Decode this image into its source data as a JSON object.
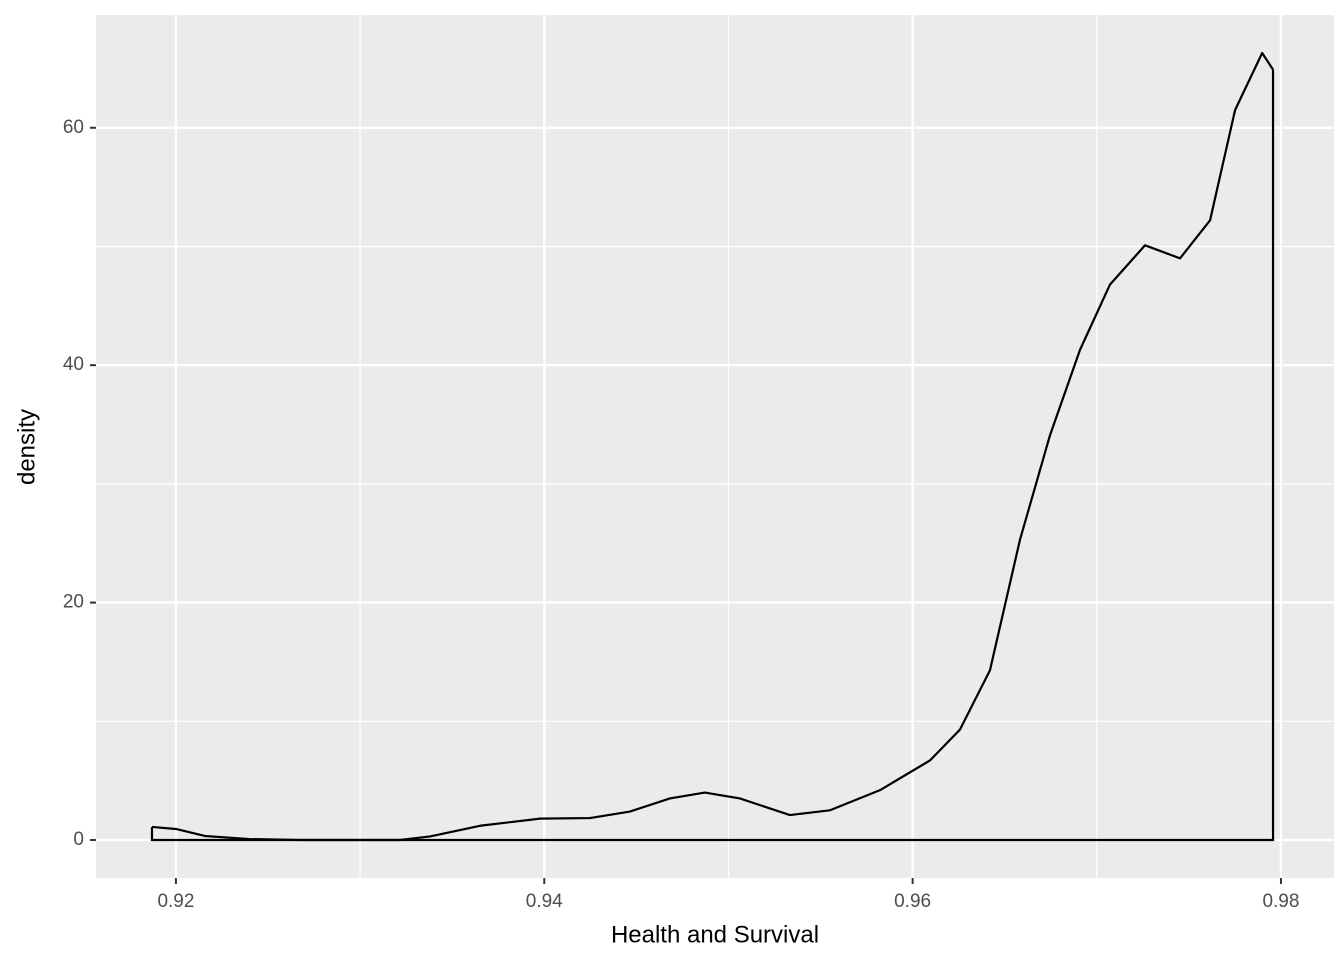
{
  "chart_data": {
    "type": "density",
    "xlabel": "Health and Survival",
    "ylabel": "density",
    "x": [
      0.9187,
      0.92,
      0.92157,
      0.924,
      0.92673,
      0.93216,
      0.9338,
      0.93651,
      0.93977,
      0.94248,
      0.94465,
      0.94682,
      0.94872,
      0.95062,
      0.95334,
      0.9555,
      0.95823,
      0.96094,
      0.96257,
      0.9642,
      0.96583,
      0.96746,
      0.96909,
      0.97072,
      0.97262,
      0.97452,
      0.97615,
      0.97751,
      0.97898,
      0.97957
    ],
    "values": [
      1.1,
      0.93,
      0.34,
      0.08,
      0,
      0,
      0.3,
      1.2,
      1.8,
      1.85,
      2.4,
      3.5,
      4.0,
      3.5,
      2.1,
      2.5,
      4.2,
      6.7,
      9.3,
      14.3,
      25.3,
      34.1,
      41.3,
      46.8,
      50.1,
      49.0,
      52.2,
      61.5,
      66.3,
      64.9
    ],
    "color": "#000000",
    "xlim": [
      0.91566,
      0.98288
    ],
    "ylim": [
      -3.2,
      69.5
    ],
    "xticks": [
      0.92,
      0.94,
      0.96,
      0.98
    ],
    "yticks": [
      0,
      20,
      40,
      60
    ],
    "xminor": [
      0.93,
      0.95,
      0.97
    ],
    "yminor": [
      10,
      30,
      50
    ],
    "grid": true
  }
}
